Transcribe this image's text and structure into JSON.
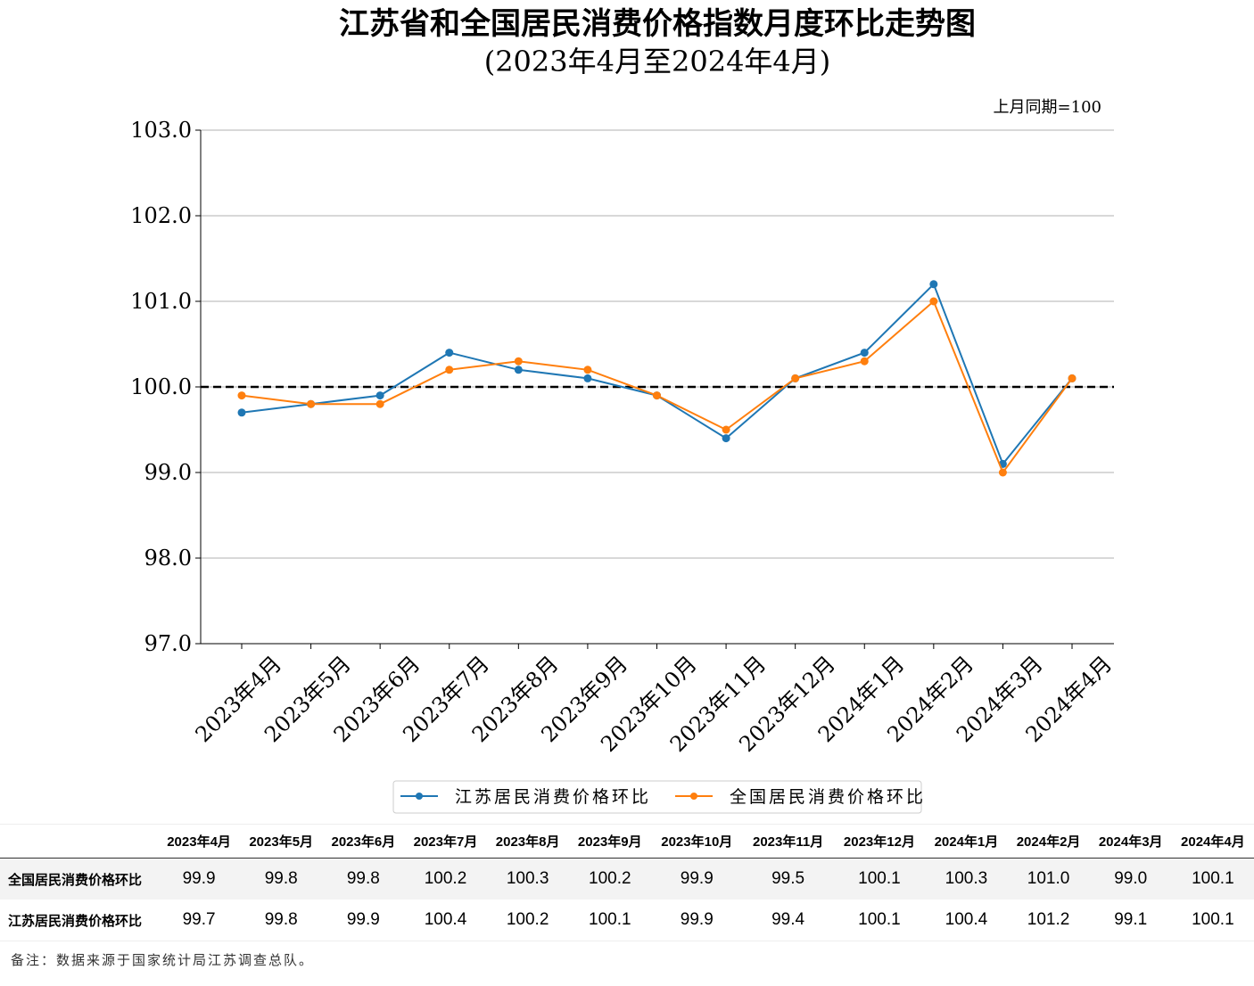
{
  "chart_data": {
    "type": "line",
    "title": "江苏省和全国居民消费价格指数月度环比走势图",
    "subtitle": "(2023年4月至2024年4月)",
    "annotation": "上月同期=100",
    "categories": [
      "2023年4月",
      "2023年5月",
      "2023年6月",
      "2023年7月",
      "2023年8月",
      "2023年9月",
      "2023年10月",
      "2023年11月",
      "2023年12月",
      "2024年1月",
      "2024年2月",
      "2024年3月",
      "2024年4月"
    ],
    "series": [
      {
        "name": "江苏居民消费价格环比",
        "color": "#1f77b4",
        "values": [
          99.7,
          99.8,
          99.9,
          100.4,
          100.2,
          100.1,
          99.9,
          99.4,
          100.1,
          100.4,
          101.2,
          99.1,
          100.1
        ]
      },
      {
        "name": "全国居民消费价格环比",
        "color": "#ff7f0e",
        "values": [
          99.9,
          99.8,
          99.8,
          100.2,
          100.3,
          100.2,
          99.9,
          99.5,
          100.1,
          100.3,
          101.0,
          99.0,
          100.1
        ]
      }
    ],
    "yticks": [
      "97.0",
      "98.0",
      "99.0",
      "100.0",
      "101.0",
      "102.0",
      "103.0"
    ],
    "ylim": [
      97,
      103
    ],
    "reference_line": 100,
    "grid": "horizontal",
    "legend": "bottom-center"
  },
  "table": {
    "rows": [
      {
        "label": "全国居民消费价格环比",
        "values": [
          "99.9",
          "99.8",
          "99.8",
          "100.2",
          "100.3",
          "100.2",
          "99.9",
          "99.5",
          "100.1",
          "100.3",
          "101.0",
          "99.0",
          "100.1"
        ]
      },
      {
        "label": "江苏居民消费价格环比",
        "values": [
          "99.7",
          "99.8",
          "99.9",
          "100.4",
          "100.2",
          "100.1",
          "99.9",
          "99.4",
          "100.1",
          "100.4",
          "101.2",
          "99.1",
          "100.1"
        ]
      }
    ]
  },
  "note": "备注：数据来源于国家统计局江苏调查总队。"
}
